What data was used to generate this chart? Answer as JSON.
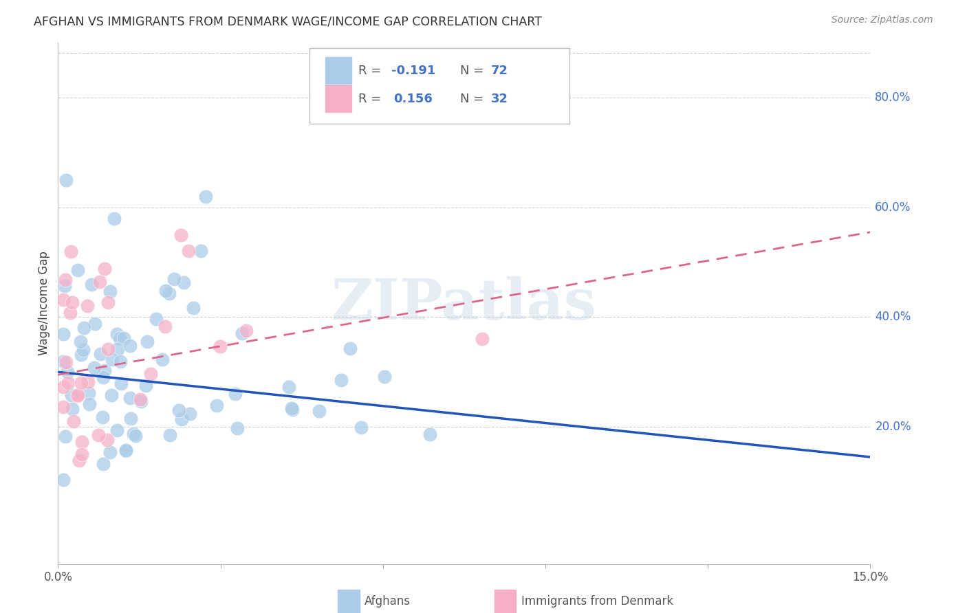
{
  "title": "AFGHAN VS IMMIGRANTS FROM DENMARK WAGE/INCOME GAP CORRELATION CHART",
  "source": "Source: ZipAtlas.com",
  "ylabel": "Wage/Income Gap",
  "right_yticks": [
    "80.0%",
    "60.0%",
    "40.0%",
    "20.0%"
  ],
  "right_ytick_vals": [
    0.8,
    0.6,
    0.4,
    0.2
  ],
  "xmin": 0.0,
  "xmax": 0.15,
  "ymin": -0.05,
  "ymax": 0.9,
  "watermark_text": "ZIPatlas",
  "afghans_color": "#aacce8",
  "denmark_color": "#f5b0c8",
  "afghans_line_color": "#2255bb",
  "denmark_line_color": "#dd6688",
  "grid_color": "#d0d0d0",
  "background_color": "#ffffff",
  "title_color": "#333333",
  "source_color": "#888888",
  "right_label_color": "#4472C4",
  "tick_label_color": "#555555",
  "legend_r1_val": "-0.191",
  "legend_r1_n": "72",
  "legend_r2_val": "0.156",
  "legend_r2_n": "32",
  "af_line_y0": 0.3,
  "af_line_y1": 0.145,
  "dk_line_y0": 0.295,
  "dk_line_y1": 0.555
}
